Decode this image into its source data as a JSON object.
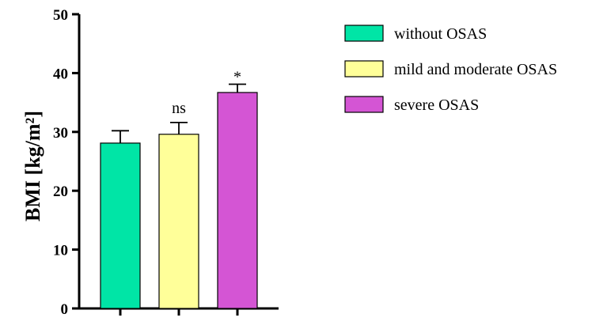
{
  "chart_data": {
    "type": "bar",
    "categories": [
      "without OSAS",
      "mild and moderate OSAS",
      "severe OSAS"
    ],
    "values": [
      28.1,
      29.6,
      36.7
    ],
    "errors": [
      2.1,
      2.0,
      1.4
    ],
    "annotations": [
      "",
      "ns",
      "*"
    ],
    "colors": [
      "#00e5a6",
      "#ffff99",
      "#d455d4"
    ],
    "ylabel": "BMI  [kg/m²]",
    "ylim": [
      0,
      50
    ],
    "yticks": [
      "0",
      "10",
      "20",
      "30",
      "40",
      "50"
    ],
    "legend": {
      "position": "top-right",
      "entries": [
        "without OSAS",
        "mild and moderate OSAS",
        "severe OSAS"
      ]
    }
  }
}
